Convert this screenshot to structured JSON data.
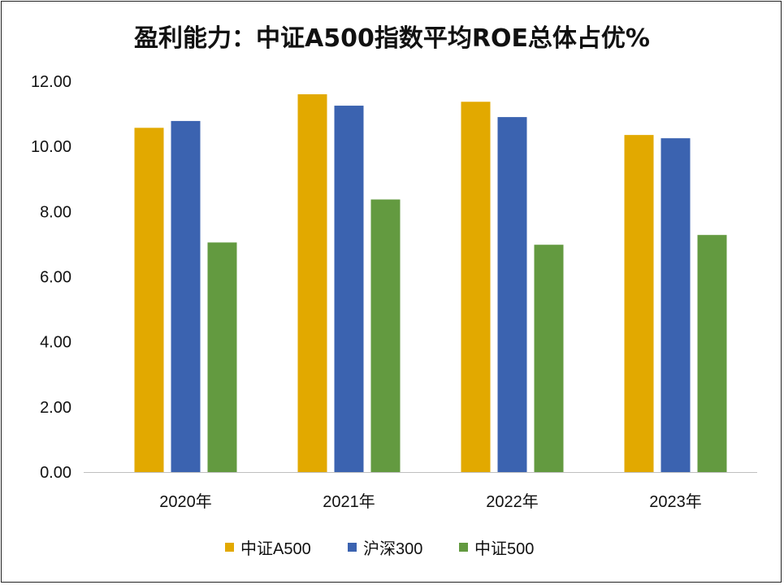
{
  "chart_data": {
    "type": "bar",
    "title": "盈利能力：中证A500指数平均ROE总体占优%",
    "categories": [
      "2020年",
      "2021年",
      "2022年",
      "2023年"
    ],
    "series": [
      {
        "name": "中证A500",
        "color": "#E2A900",
        "values": [
          10.57,
          11.6,
          11.37,
          10.35
        ]
      },
      {
        "name": "沪深300",
        "color": "#3B63B0",
        "values": [
          10.78,
          11.25,
          10.9,
          10.25
        ]
      },
      {
        "name": "中证500",
        "color": "#639A40",
        "values": [
          7.05,
          8.37,
          6.98,
          7.28
        ]
      }
    ],
    "yticks": [
      "0.00",
      "2.00",
      "4.00",
      "6.00",
      "8.00",
      "10.00",
      "12.00"
    ],
    "ylim": [
      0,
      12
    ],
    "xlabel": "",
    "ylabel": "",
    "grid": false,
    "legend_position": "bottom"
  }
}
